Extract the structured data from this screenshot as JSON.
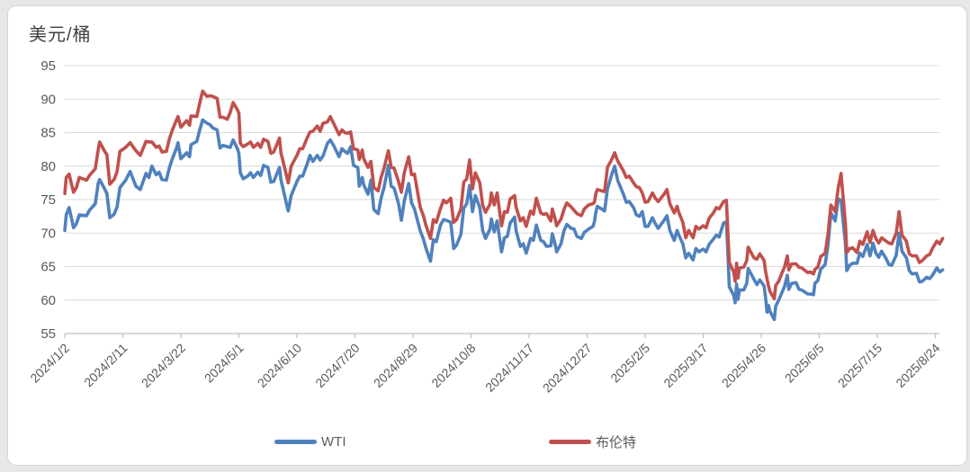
{
  "header": {
    "unit_label": "美元/桶"
  },
  "colors": {
    "wti": "#4F81BD",
    "brent": "#C0504D",
    "grid": "#d9d9d9",
    "axis": "#bfbfbf",
    "tick_text": "#595959",
    "frame_border": "#d5d5d5",
    "page_bg": "#e7e7e7"
  },
  "legend": {
    "items": [
      {
        "label": "WTI",
        "color": "#4F81BD"
      },
      {
        "label": "布伦特",
        "color": "#C0504D"
      }
    ],
    "position": "bottom"
  },
  "chart_data": {
    "type": "line",
    "title": "",
    "ylabel": "美元/桶",
    "xlabel": "",
    "grid": true,
    "legend_position": "bottom",
    "ylim": [
      55,
      95
    ],
    "yticks": [
      95,
      90,
      85,
      80,
      75,
      70,
      65,
      60,
      55
    ],
    "xtick_labels": [
      "2024/1/2",
      "2024/2/11",
      "2024/3/22",
      "2024/5/1",
      "2024/6/10",
      "2024/7/20",
      "2024/8/29",
      "2024/10/8",
      "2024/11/17",
      "2024/12/27",
      "2025/2/5",
      "2025/3/17",
      "2025/4/26",
      "2025/6/5",
      "2025/7/15",
      "2025/8/24"
    ],
    "xtick_days": [
      0,
      40,
      80,
      120,
      160,
      200,
      240,
      280,
      320,
      360,
      400,
      440,
      480,
      520,
      560,
      600
    ],
    "x_is_days_since": "2024/1/2",
    "x_days": [
      0,
      1,
      3,
      6,
      8,
      10,
      15,
      17,
      21,
      23,
      24,
      27,
      29,
      31,
      34,
      36,
      38,
      42,
      45,
      49,
      52,
      56,
      58,
      60,
      63,
      65,
      67,
      70,
      72,
      74,
      77,
      78,
      80,
      84,
      86,
      87,
      91,
      93,
      95,
      98,
      100,
      102,
      105,
      107,
      109,
      112,
      114,
      116,
      119,
      120,
      121,
      123,
      126,
      128,
      130,
      133,
      135,
      137,
      140,
      142,
      144,
      148,
      149,
      150,
      153,
      154,
      156,
      160,
      162,
      164,
      167,
      169,
      171,
      174,
      176,
      178,
      181,
      183,
      185,
      189,
      191,
      193,
      195,
      197,
      199,
      202,
      203,
      205,
      206,
      209,
      211,
      213,
      216,
      218,
      220,
      223,
      225,
      227,
      230,
      232,
      234,
      237,
      239,
      241,
      245,
      247,
      249,
      252,
      254,
      256,
      259,
      261,
      263,
      266,
      268,
      270,
      273,
      275,
      277,
      279,
      281,
      283,
      286,
      288,
      290,
      293,
      294,
      296,
      298,
      301,
      303,
      305,
      307,
      310,
      311,
      314,
      316,
      318,
      321,
      323,
      325,
      328,
      330,
      332,
      335,
      336,
      338,
      339,
      342,
      344,
      346,
      349,
      351,
      353,
      356,
      358,
      361,
      364,
      365,
      366,
      367,
      370,
      372,
      374,
      377,
      379,
      381,
      385,
      387,
      389,
      392,
      394,
      396,
      398,
      400,
      402,
      405,
      407,
      409,
      413,
      415,
      417,
      420,
      422,
      423,
      426,
      428,
      430,
      433,
      435,
      437,
      440,
      442,
      444,
      447,
      449,
      451,
      454,
      456,
      457,
      458,
      461,
      462,
      463,
      464,
      465,
      468,
      470,
      471,
      475,
      477,
      479,
      482,
      483,
      484,
      485,
      486,
      489,
      490,
      492,
      494,
      496,
      498,
      499,
      501,
      504,
      506,
      508,
      512,
      514,
      516,
      517,
      519,
      521,
      524,
      526,
      528,
      531,
      533,
      535,
      538,
      539,
      541,
      543,
      546,
      548,
      550,
      553,
      555,
      557,
      559,
      561,
      563,
      566,
      568,
      570,
      573,
      575,
      577,
      580,
      582,
      584,
      587,
      589,
      591,
      594,
      596,
      598,
      601,
      603,
      605
    ],
    "series": [
      {
        "name": "WTI",
        "color": "#4F81BD",
        "values": [
          70.4,
          72.7,
          73.8,
          70.8,
          71.4,
          72.7,
          72.6,
          73.4,
          74.4,
          77.4,
          78.0,
          76.8,
          75.9,
          72.3,
          72.8,
          73.9,
          76.8,
          77.9,
          79.2,
          77.0,
          76.5,
          78.9,
          78.3,
          80.0,
          78.7,
          79.1,
          78.0,
          77.9,
          79.7,
          81.0,
          82.7,
          83.5,
          81.1,
          82.0,
          81.4,
          83.2,
          83.7,
          85.4,
          86.9,
          86.4,
          86.2,
          85.7,
          85.4,
          82.7,
          83.1,
          82.9,
          82.8,
          83.9,
          82.6,
          81.9,
          79.0,
          78.1,
          78.5,
          79.0,
          78.3,
          79.1,
          78.6,
          80.1,
          79.8,
          77.6,
          77.7,
          79.8,
          77.9,
          77.0,
          74.2,
          73.3,
          75.6,
          77.7,
          78.5,
          78.5,
          80.3,
          81.6,
          80.7,
          81.6,
          80.9,
          81.5,
          83.4,
          83.9,
          83.2,
          81.4,
          82.6,
          82.2,
          81.9,
          82.9,
          80.1,
          79.8,
          77.0,
          78.3,
          77.2,
          75.8,
          77.9,
          73.5,
          72.9,
          75.2,
          76.8,
          80.1,
          77.0,
          76.7,
          74.4,
          71.9,
          74.8,
          77.4,
          74.5,
          73.6,
          70.3,
          69.2,
          67.7,
          65.8,
          69.0,
          68.7,
          71.2,
          72.0,
          71.9,
          71.6,
          67.7,
          68.2,
          69.8,
          73.7,
          74.4,
          77.1,
          73.2,
          75.6,
          73.8,
          70.4,
          69.2,
          70.6,
          72.1,
          70.2,
          71.8,
          67.2,
          69.3,
          69.5,
          71.5,
          72.4,
          70.4,
          68.0,
          68.4,
          67.0,
          69.2,
          68.9,
          71.2,
          68.9,
          68.7,
          68.0,
          68.1,
          69.9,
          68.3,
          67.2,
          68.4,
          70.3,
          71.3,
          70.7,
          70.6,
          69.5,
          69.2,
          70.1,
          70.6,
          71.0,
          71.7,
          73.1,
          74.0,
          73.6,
          73.3,
          76.6,
          78.8,
          80.0,
          77.9,
          75.8,
          74.6,
          74.7,
          73.8,
          72.7,
          72.5,
          73.2,
          71.0,
          71.0,
          72.3,
          71.4,
          70.7,
          71.9,
          72.6,
          70.4,
          68.9,
          70.4,
          69.8,
          68.4,
          66.3,
          67.0,
          66.0,
          67.7,
          67.2,
          67.6,
          67.2,
          68.3,
          69.1,
          69.7,
          69.4,
          71.5,
          71.7,
          67.0,
          62.0,
          60.7,
          59.6,
          62.4,
          60.1,
          61.5,
          61.5,
          62.5,
          64.7,
          63.1,
          62.3,
          63.0,
          62.1,
          60.4,
          58.2,
          59.2,
          58.3,
          57.1,
          59.1,
          60.0,
          61.0,
          62.0,
          63.7,
          61.6,
          62.5,
          62.6,
          61.6,
          61.5,
          60.9,
          60.9,
          60.8,
          62.5,
          62.9,
          64.6,
          65.3,
          68.2,
          73.0,
          71.8,
          75.1,
          74.9,
          68.5,
          64.4,
          65.2,
          65.5,
          65.5,
          67.0,
          66.5,
          68.3,
          66.6,
          68.5,
          67.0,
          66.4,
          67.3,
          66.2,
          65.3,
          65.2,
          66.7,
          70.0,
          67.3,
          66.3,
          64.4,
          63.9,
          64.0,
          62.7,
          62.8,
          63.4,
          63.2,
          63.7,
          64.8,
          64.2,
          64.5
        ]
      },
      {
        "name": "布伦特",
        "color": "#C0504D",
        "values": [
          75.9,
          78.3,
          78.8,
          76.1,
          76.8,
          78.3,
          77.9,
          78.6,
          79.6,
          82.4,
          83.6,
          82.4,
          81.7,
          77.3,
          78.0,
          79.2,
          82.2,
          82.8,
          83.5,
          82.3,
          81.6,
          83.7,
          83.6,
          83.6,
          82.8,
          83.0,
          82.1,
          82.2,
          84.0,
          85.3,
          86.9,
          87.4,
          85.8,
          86.8,
          86.1,
          87.5,
          87.4,
          89.4,
          91.2,
          90.4,
          90.5,
          90.4,
          90.1,
          87.3,
          87.3,
          87.0,
          88.0,
          89.5,
          88.4,
          87.9,
          83.4,
          82.9,
          83.3,
          83.6,
          82.8,
          83.4,
          82.8,
          84.0,
          83.7,
          81.9,
          82.1,
          84.2,
          81.9,
          81.1,
          78.4,
          77.5,
          80.0,
          81.6,
          82.6,
          82.6,
          84.2,
          85.1,
          85.2,
          86.0,
          85.2,
          86.4,
          86.6,
          87.4,
          86.5,
          84.7,
          85.4,
          85.0,
          84.9,
          85.1,
          82.6,
          82.4,
          81.0,
          82.4,
          81.1,
          79.8,
          80.7,
          76.8,
          76.3,
          78.3,
          79.7,
          82.3,
          79.8,
          79.7,
          77.7,
          76.1,
          79.0,
          81.4,
          78.7,
          78.8,
          73.8,
          72.7,
          71.1,
          69.2,
          72.0,
          71.6,
          73.7,
          74.9,
          74.5,
          75.2,
          71.6,
          72.0,
          73.6,
          77.6,
          78.1,
          80.9,
          76.6,
          79.0,
          77.5,
          74.2,
          73.1,
          74.3,
          76.0,
          74.2,
          76.0,
          71.1,
          73.2,
          73.1,
          75.1,
          75.6,
          73.9,
          71.8,
          72.3,
          71.0,
          73.3,
          72.8,
          75.2,
          73.0,
          72.8,
          72.9,
          71.8,
          73.6,
          72.1,
          71.1,
          72.1,
          73.5,
          74.5,
          73.9,
          73.4,
          72.9,
          72.6,
          73.6,
          74.2,
          74.4,
          74.6,
          75.9,
          76.5,
          76.3,
          76.2,
          79.8,
          81.0,
          82.0,
          80.8,
          79.3,
          78.3,
          78.5,
          77.5,
          76.9,
          76.8,
          76.0,
          74.6,
          74.7,
          76.0,
          75.2,
          74.7,
          75.8,
          76.5,
          74.4,
          73.0,
          74.0,
          73.2,
          71.6,
          69.3,
          70.4,
          69.3,
          71.0,
          70.6,
          71.1,
          70.8,
          72.2,
          73.0,
          73.8,
          73.6,
          74.7,
          74.9,
          70.1,
          65.6,
          64.2,
          62.8,
          65.5,
          63.3,
          64.8,
          64.9,
          65.9,
          67.9,
          66.3,
          66.1,
          66.9,
          65.9,
          64.3,
          63.1,
          62.1,
          61.3,
          60.2,
          62.2,
          62.8,
          63.9,
          64.9,
          66.6,
          64.5,
          65.4,
          65.4,
          64.9,
          64.8,
          64.1,
          64.2,
          63.9,
          64.6,
          64.9,
          66.5,
          67.0,
          69.8,
          74.2,
          73.2,
          76.7,
          78.9,
          71.5,
          67.1,
          67.7,
          67.8,
          67.1,
          68.8,
          68.3,
          70.2,
          68.6,
          70.4,
          69.2,
          68.5,
          69.3,
          68.8,
          68.5,
          68.4,
          70.0,
          73.2,
          69.7,
          68.8,
          66.9,
          66.6,
          66.6,
          65.6,
          65.9,
          66.6,
          66.8,
          67.7,
          68.8,
          68.4,
          69.2
        ]
      }
    ]
  }
}
